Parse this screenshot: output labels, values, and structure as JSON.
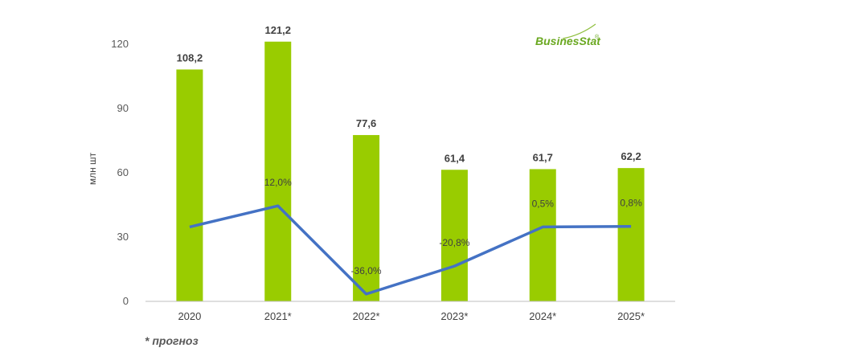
{
  "logo": {
    "text": "BusinesStat",
    "mark": "®"
  },
  "footnote": "* прогноз",
  "colors": {
    "bar": "#99cc00",
    "line": "#4472c4",
    "axis": "#bfbfbf"
  },
  "chart_data": {
    "type": "bar",
    "categories": [
      "2020",
      "2021*",
      "2022*",
      "2023*",
      "2024*",
      "2025*"
    ],
    "ylabel": "млн шт",
    "ylim": [
      0,
      120
    ],
    "yticks": [
      "0",
      "30",
      "60",
      "90",
      "120"
    ],
    "grid": false,
    "series": [
      {
        "type": "bar",
        "values": [
          108.2,
          121.2,
          77.6,
          61.4,
          61.7,
          62.2
        ],
        "labels": [
          "108,2",
          "121,2",
          "77,6",
          "61,4",
          "61,7",
          "62,2"
        ]
      },
      {
        "type": "line",
        "axis": "secondary",
        "values": [
          null,
          12.0,
          -36.0,
          -20.8,
          0.5,
          0.8
        ],
        "labels": [
          "",
          "12,0%",
          "-36,0%",
          "-20,8%",
          "0,5%",
          "0,8%"
        ]
      }
    ]
  }
}
